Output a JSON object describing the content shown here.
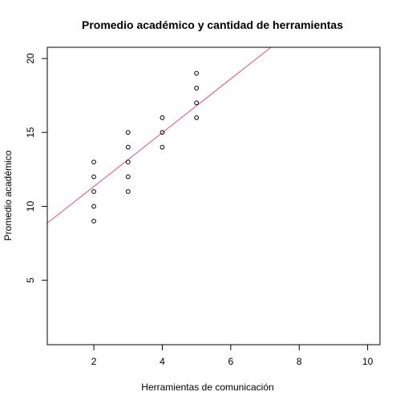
{
  "chart_data": {
    "type": "scatter",
    "title": "Promedio académico y cantidad de herramientas",
    "xlabel": "Herramientas de comunicación",
    "ylabel": "Promedio académico",
    "xlim": [
      0.64,
      10.36
    ],
    "ylim": [
      0.64,
      20.76
    ],
    "x_ticks": [
      2,
      4,
      6,
      8,
      10
    ],
    "y_ticks": [
      5,
      10,
      15,
      20
    ],
    "points": [
      {
        "x": 2,
        "y": 9
      },
      {
        "x": 2,
        "y": 10
      },
      {
        "x": 2,
        "y": 11
      },
      {
        "x": 2,
        "y": 12
      },
      {
        "x": 2,
        "y": 13
      },
      {
        "x": 3,
        "y": 11
      },
      {
        "x": 3,
        "y": 12
      },
      {
        "x": 3,
        "y": 13
      },
      {
        "x": 3,
        "y": 14
      },
      {
        "x": 3,
        "y": 15
      },
      {
        "x": 4,
        "y": 14
      },
      {
        "x": 4,
        "y": 15
      },
      {
        "x": 4,
        "y": 16
      },
      {
        "x": 5,
        "y": 16
      },
      {
        "x": 5,
        "y": 17
      },
      {
        "x": 5,
        "y": 18
      },
      {
        "x": 5,
        "y": 19
      }
    ],
    "regression_line": {
      "intercept": 7.7,
      "slope": 1.82,
      "color": "#DF536B"
    },
    "point_color": "#000000",
    "grid": false
  }
}
